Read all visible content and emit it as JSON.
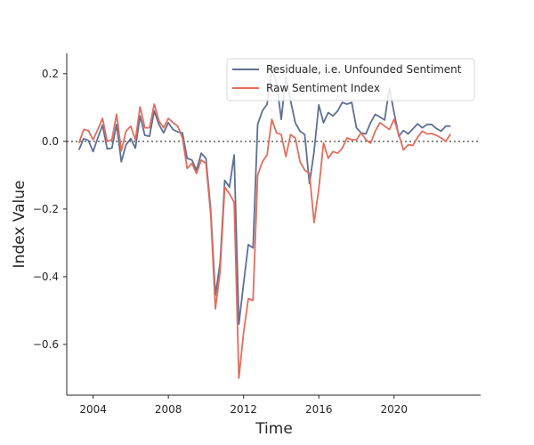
{
  "chart_data": {
    "type": "line",
    "title": "",
    "xlabel": "Time",
    "ylabel": "Index Value",
    "xlim": [
      2002.6,
      2024.6
    ],
    "ylim": [
      -0.75,
      0.26
    ],
    "x_ticks": [
      2004,
      2008,
      2012,
      2016,
      2020
    ],
    "x_tick_labels": [
      "2004",
      "2008",
      "2012",
      "2016",
      "2020"
    ],
    "y_ticks": [
      0.2,
      0.0,
      -0.2,
      -0.4,
      -0.6
    ],
    "y_tick_labels": [
      "0.2",
      "0.0",
      "−0.2",
      "−0.4",
      "−0.6"
    ],
    "reference_line": 0.0,
    "grid": false,
    "legend_position": "top-right",
    "x": [
      2003.25,
      2003.5,
      2003.75,
      2004.0,
      2004.25,
      2004.5,
      2004.75,
      2005.0,
      2005.25,
      2005.5,
      2005.75,
      2006.0,
      2006.25,
      2006.5,
      2006.75,
      2007.0,
      2007.25,
      2007.5,
      2007.75,
      2008.0,
      2008.25,
      2008.5,
      2008.75,
      2009.0,
      2009.25,
      2009.5,
      2009.75,
      2010.0,
      2010.25,
      2010.5,
      2010.75,
      2011.0,
      2011.25,
      2011.5,
      2011.75,
      2012.0,
      2012.25,
      2012.5,
      2012.75,
      2013.0,
      2013.25,
      2013.5,
      2013.75,
      2014.0,
      2014.25,
      2014.5,
      2014.75,
      2015.0,
      2015.25,
      2015.5,
      2015.75,
      2016.0,
      2016.25,
      2016.5,
      2016.75,
      2017.0,
      2017.25,
      2017.5,
      2017.75,
      2018.0,
      2018.25,
      2018.5,
      2018.75,
      2019.0,
      2019.25,
      2019.5,
      2019.75,
      2020.0,
      2020.25,
      2020.5,
      2020.75,
      2021.0,
      2021.25,
      2021.5,
      2021.75,
      2022.0,
      2022.25,
      2022.5,
      2022.75,
      2023.0
    ],
    "series": [
      {
        "name": "Residuale, i.e. Unfounded Sentiment",
        "color": "#5f6f94",
        "values": [
          -0.025,
          0.008,
          0.003,
          -0.03,
          0.01,
          0.048,
          -0.022,
          -0.02,
          0.05,
          -0.06,
          -0.01,
          0.008,
          -0.02,
          0.075,
          0.018,
          0.015,
          0.09,
          0.05,
          0.025,
          0.055,
          0.035,
          0.028,
          0.025,
          -0.05,
          -0.055,
          -0.085,
          -0.035,
          -0.05,
          -0.2,
          -0.455,
          -0.36,
          -0.115,
          -0.135,
          -0.04,
          -0.54,
          -0.42,
          -0.305,
          -0.315,
          0.05,
          0.09,
          0.11,
          0.21,
          0.175,
          0.065,
          0.19,
          0.12,
          0.055,
          0.03,
          0.02,
          -0.125,
          -0.03,
          0.108,
          0.055,
          0.085,
          0.075,
          0.09,
          0.115,
          0.11,
          0.115,
          0.04,
          0.025,
          0.022,
          0.055,
          0.08,
          0.072,
          0.063,
          0.158,
          0.085,
          0.015,
          0.032,
          0.022,
          0.037,
          0.052,
          0.04,
          0.05,
          0.05,
          0.038,
          0.03,
          0.045,
          0.045
        ]
      },
      {
        "name": "Raw Sentiment Index",
        "color": "#e26d5c",
        "values": [
          -0.005,
          0.035,
          0.032,
          0.005,
          0.035,
          0.068,
          0.0,
          0.005,
          0.08,
          -0.028,
          0.03,
          0.045,
          0.005,
          0.102,
          0.04,
          0.04,
          0.11,
          0.06,
          0.04,
          0.068,
          0.055,
          0.045,
          0.01,
          -0.08,
          -0.065,
          -0.095,
          -0.055,
          -0.065,
          -0.215,
          -0.495,
          -0.385,
          -0.135,
          -0.155,
          -0.18,
          -0.7,
          -0.565,
          -0.465,
          -0.47,
          -0.1,
          -0.06,
          -0.04,
          0.065,
          0.025,
          0.02,
          -0.045,
          0.02,
          0.01,
          -0.06,
          -0.085,
          -0.095,
          -0.24,
          -0.14,
          -0.005,
          -0.05,
          -0.03,
          -0.035,
          -0.02,
          0.01,
          0.005,
          0.005,
          0.025,
          0.005,
          -0.005,
          0.03,
          0.055,
          0.045,
          0.035,
          0.065,
          0.02,
          -0.025,
          -0.01,
          -0.012,
          0.012,
          0.03,
          0.022,
          0.023,
          0.018,
          0.01,
          0.0,
          0.022
        ]
      }
    ]
  }
}
